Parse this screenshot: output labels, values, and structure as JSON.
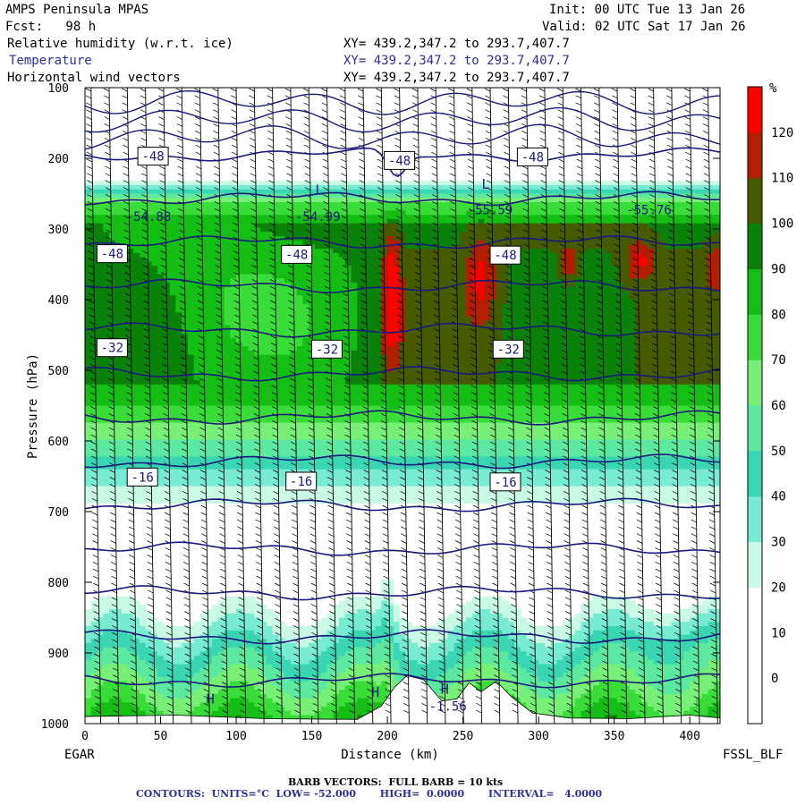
{
  "header": {
    "model": "AMPS Peninsula MPAS",
    "forecast": "Fcst:   98 h",
    "init": "Init: 00 UTC Tue 13 Jan 26",
    "valid": "Valid: 02 UTC Sat 17 Jan 26"
  },
  "fields": [
    {
      "label": "Relative humidity (w.r.t. ice)",
      "xy": "XY= 439.2,347.2 to 293.7,407.7"
    },
    {
      "label": "Temperature",
      "xy": "XY= 439.2,347.2 to 293.7,407.7"
    },
    {
      "label": "Horizontal wind vectors",
      "xy": "XY= 439.2,347.2 to 293.7,407.7"
    }
  ],
  "footer": {
    "barb": "BARB VECTORS:  FULL BARB = 10 kts",
    "contours": "CONTOURS:  UNITS=°C  LOW= -52.000       HIGH=  0.0000       INTERVAL=   4.0000"
  },
  "colors": {
    "temperature_contour": "#1a1a7a",
    "rh_scale": [
      "#ffffff",
      "#ffffff",
      "#ffffff",
      "#c8fae6",
      "#78ecd2",
      "#3ad6b4",
      "#5ce8a0",
      "#78f078",
      "#3adc3a",
      "#14be14",
      "#0a820a",
      "#465a00",
      "#b41e00",
      "#ff0000"
    ]
  },
  "chart_data": {
    "type": "heatmap",
    "title": "",
    "xlabel": "Distance (km)",
    "ylabel": "Pressure (hPa)",
    "xlim": [
      0,
      420
    ],
    "ylim": [
      1000,
      100
    ],
    "x_ticks": [
      0,
      50,
      100,
      150,
      200,
      250,
      300,
      350,
      400
    ],
    "y_ticks": [
      100,
      200,
      300,
      400,
      500,
      600,
      700,
      800,
      900,
      1000
    ],
    "left_endpoint": "EGAR",
    "right_endpoint": "FSSL_BLF",
    "colorbar": {
      "unit": "%",
      "levels": [
        0,
        10,
        20,
        30,
        40,
        50,
        60,
        70,
        80,
        90,
        100,
        110,
        120
      ]
    },
    "temperature_isotherms": [
      -48,
      -44,
      -40,
      -36,
      -32,
      -28,
      -24,
      -20,
      -16,
      -12,
      -8,
      -4,
      0
    ],
    "contour_labels": [
      {
        "text": "-48",
        "x": 45,
        "p": 197
      },
      {
        "text": "-48",
        "x": 208,
        "p": 203
      },
      {
        "text": "-48",
        "x": 296,
        "p": 198
      },
      {
        "text": "-48",
        "x": 18,
        "p": 335
      },
      {
        "text": "-48",
        "x": 140,
        "p": 336
      },
      {
        "text": "-48",
        "x": 278,
        "p": 337
      },
      {
        "text": "-32",
        "x": 18,
        "p": 468
      },
      {
        "text": "-32",
        "x": 160,
        "p": 470
      },
      {
        "text": "-32",
        "x": 280,
        "p": 470
      },
      {
        "text": "-16",
        "x": 38,
        "p": 651
      },
      {
        "text": "-16",
        "x": 143,
        "p": 657
      },
      {
        "text": "-16",
        "x": 278,
        "p": 658
      }
    ],
    "extrema": [
      {
        "text": "L",
        "x": 155,
        "p": 245
      },
      {
        "text": "L",
        "x": 265,
        "p": 237
      },
      {
        "text": "H",
        "x": 83,
        "p": 965
      },
      {
        "text": "H",
        "x": 192,
        "p": 956
      },
      {
        "text": "H",
        "x": 238,
        "p": 951
      }
    ],
    "extrema_values": [
      {
        "text": "-54.88",
        "x": 42,
        "p": 282
      },
      {
        "text": "-54.99",
        "x": 154,
        "p": 282
      },
      {
        "text": "-55.59",
        "x": 268,
        "p": 273
      },
      {
        "text": "-55.76",
        "x": 373,
        "p": 273
      },
      {
        "text": "-1.56",
        "x": 240,
        "p": 975
      }
    ]
  }
}
